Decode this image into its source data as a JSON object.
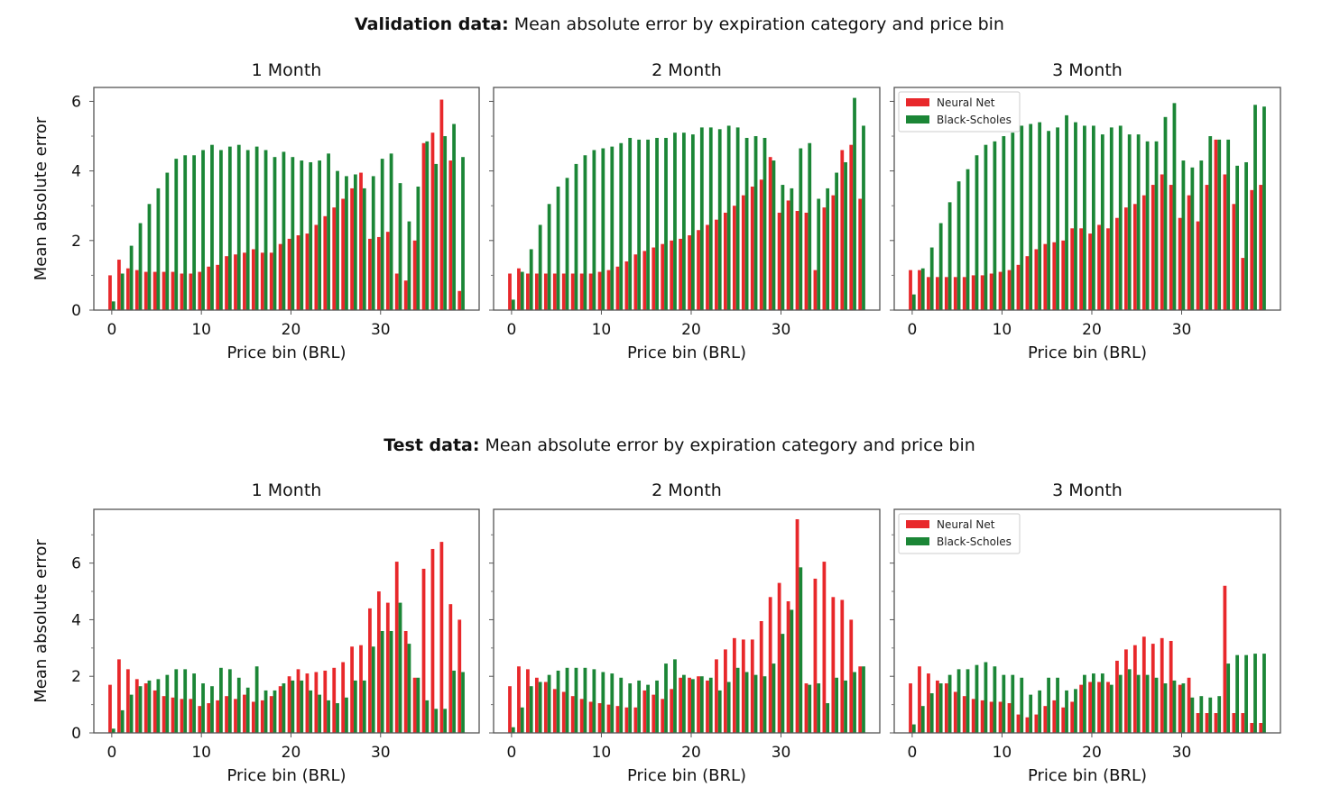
{
  "colors": {
    "neural_net": "#e8282b",
    "black_scholes": "#1b8636"
  },
  "chart_data": [
    {
      "type": "bar",
      "title": "1 Month",
      "suptitle_bold": "Validation data:",
      "suptitle_rest": " Mean absolute error by expiration category and price bin",
      "xlabel": "Price bin (BRL)",
      "ylabel": "Mean absolute error",
      "xlim": [
        -2,
        41
      ],
      "ylim": [
        0,
        6.4
      ],
      "xticks": [
        0,
        10,
        20,
        30
      ],
      "yticks": [
        0,
        2,
        4,
        6
      ],
      "x": [
        0,
        1,
        2,
        3,
        4,
        5,
        6,
        7,
        8,
        9,
        10,
        11,
        12,
        13,
        14,
        15,
        16,
        17,
        18,
        19,
        20,
        21,
        22,
        23,
        24,
        25,
        26,
        27,
        28,
        29,
        30,
        31,
        32,
        33,
        34,
        35,
        36,
        37,
        38,
        39
      ],
      "legend": false,
      "series": [
        {
          "name": "Neural Net",
          "values": [
            1.0,
            1.45,
            1.2,
            1.15,
            1.1,
            1.1,
            1.1,
            1.1,
            1.05,
            1.05,
            1.1,
            1.25,
            1.3,
            1.55,
            1.6,
            1.65,
            1.75,
            1.65,
            1.65,
            1.9,
            2.05,
            2.15,
            2.2,
            2.45,
            2.7,
            2.95,
            3.2,
            3.5,
            3.95,
            2.05,
            2.1,
            2.25,
            1.05,
            0.85,
            2.0,
            4.8,
            5.1,
            6.05,
            4.3,
            0.55
          ]
        },
        {
          "name": "Black-Scholes",
          "values": [
            0.25,
            1.05,
            1.85,
            2.5,
            3.05,
            3.5,
            3.95,
            4.35,
            4.45,
            4.45,
            4.6,
            4.75,
            4.6,
            4.7,
            4.75,
            4.6,
            4.7,
            4.6,
            4.4,
            4.55,
            4.4,
            4.3,
            4.25,
            4.3,
            4.5,
            4.0,
            3.85,
            3.9,
            3.5,
            3.85,
            4.35,
            4.5,
            3.65,
            2.55,
            3.55,
            4.85,
            4.2,
            5.0,
            5.35,
            4.4
          ]
        }
      ]
    },
    {
      "type": "bar",
      "title": "2 Month",
      "xlabel": "Price bin (BRL)",
      "ylabel": "",
      "xlim": [
        -2,
        41
      ],
      "ylim": [
        0,
        6.4
      ],
      "xticks": [
        0,
        10,
        20,
        30
      ],
      "yticks": [
        0,
        2,
        4,
        6
      ],
      "x": [
        0,
        1,
        2,
        3,
        4,
        5,
        6,
        7,
        8,
        9,
        10,
        11,
        12,
        13,
        14,
        15,
        16,
        17,
        18,
        19,
        20,
        21,
        22,
        23,
        24,
        25,
        26,
        27,
        28,
        29,
        30,
        31,
        32,
        33,
        34,
        35,
        36,
        37,
        38,
        39
      ],
      "legend": false,
      "series": [
        {
          "name": "Neural Net",
          "values": [
            1.05,
            1.2,
            1.05,
            1.05,
            1.05,
            1.05,
            1.05,
            1.05,
            1.05,
            1.05,
            1.1,
            1.15,
            1.25,
            1.4,
            1.6,
            1.7,
            1.8,
            1.9,
            2.0,
            2.05,
            2.15,
            2.3,
            2.45,
            2.6,
            2.8,
            3.0,
            3.3,
            3.55,
            3.75,
            4.4,
            2.8,
            3.15,
            2.85,
            2.8,
            1.15,
            2.95,
            3.3,
            4.6,
            4.75,
            3.2
          ]
        },
        {
          "name": "Black-Scholes",
          "values": [
            0.3,
            1.1,
            1.75,
            2.45,
            3.05,
            3.55,
            3.8,
            4.2,
            4.45,
            4.6,
            4.65,
            4.7,
            4.8,
            4.95,
            4.9,
            4.9,
            4.95,
            4.95,
            5.1,
            5.1,
            5.05,
            5.25,
            5.25,
            5.2,
            5.3,
            5.25,
            4.95,
            5.0,
            4.95,
            4.3,
            3.6,
            3.5,
            4.65,
            4.8,
            3.2,
            3.5,
            3.95,
            4.25,
            6.1,
            5.3
          ]
        }
      ]
    },
    {
      "type": "bar",
      "title": "3 Month",
      "xlabel": "Price bin (BRL)",
      "ylabel": "",
      "xlim": [
        -2,
        41
      ],
      "ylim": [
        0,
        6.4
      ],
      "xticks": [
        0,
        10,
        20,
        30
      ],
      "yticks": [
        0,
        2,
        4,
        6
      ],
      "x": [
        0,
        1,
        2,
        3,
        4,
        5,
        6,
        7,
        8,
        9,
        10,
        11,
        12,
        13,
        14,
        15,
        16,
        17,
        18,
        19,
        20,
        21,
        22,
        23,
        24,
        25,
        26,
        27,
        28,
        29,
        30,
        31,
        32,
        33,
        34,
        35,
        36,
        37,
        38,
        39
      ],
      "legend": true,
      "legend_loc": "upper left",
      "series": [
        {
          "name": "Neural Net",
          "values": [
            1.15,
            1.15,
            0.95,
            0.95,
            0.95,
            0.95,
            0.95,
            1.0,
            1.0,
            1.05,
            1.1,
            1.15,
            1.3,
            1.55,
            1.75,
            1.9,
            1.95,
            2.0,
            2.35,
            2.35,
            2.2,
            2.45,
            2.35,
            2.65,
            2.95,
            3.05,
            3.3,
            3.6,
            3.9,
            3.6,
            2.65,
            3.3,
            2.55,
            3.6,
            4.9,
            3.9,
            3.05,
            1.5,
            3.45,
            3.6
          ]
        },
        {
          "name": "Black-Scholes",
          "values": [
            0.45,
            1.2,
            1.8,
            2.5,
            3.1,
            3.7,
            4.05,
            4.45,
            4.75,
            4.85,
            5.0,
            5.1,
            5.3,
            5.35,
            5.4,
            5.15,
            5.25,
            5.6,
            5.4,
            5.3,
            5.3,
            5.05,
            5.25,
            5.3,
            5.05,
            5.05,
            4.85,
            4.85,
            5.55,
            5.95,
            4.3,
            4.1,
            4.3,
            5.0,
            4.9,
            4.9,
            4.15,
            4.25,
            5.9,
            5.85
          ]
        }
      ]
    },
    {
      "type": "bar",
      "title": "1 Month",
      "suptitle_bold": "Test data:",
      "suptitle_rest": " Mean absolute error by expiration category and price bin",
      "xlabel": "Price bin (BRL)",
      "ylabel": "Mean absolute error",
      "xlim": [
        -2,
        41
      ],
      "ylim": [
        0,
        7.9
      ],
      "xticks": [
        0,
        10,
        20,
        30
      ],
      "yticks": [
        0,
        2,
        4,
        6
      ],
      "x": [
        0,
        1,
        2,
        3,
        4,
        5,
        6,
        7,
        8,
        9,
        10,
        11,
        12,
        13,
        14,
        15,
        16,
        17,
        18,
        19,
        20,
        21,
        22,
        23,
        24,
        25,
        26,
        27,
        28,
        29,
        30,
        31,
        32,
        33,
        34,
        35,
        36,
        37,
        38,
        39
      ],
      "legend": false,
      "series": [
        {
          "name": "Neural Net",
          "values": [
            1.7,
            2.6,
            2.25,
            1.9,
            1.75,
            1.5,
            1.3,
            1.25,
            1.2,
            1.2,
            0.95,
            1.05,
            1.15,
            1.3,
            1.2,
            1.35,
            1.1,
            1.15,
            1.3,
            1.65,
            2.0,
            2.25,
            2.1,
            2.15,
            2.2,
            2.3,
            2.5,
            3.05,
            3.1,
            4.4,
            5.0,
            4.6,
            6.05,
            3.6,
            1.95,
            5.8,
            6.5,
            6.75,
            4.55,
            4.0
          ]
        },
        {
          "name": "Black-Scholes",
          "values": [
            0.15,
            0.8,
            1.35,
            1.65,
            1.85,
            1.9,
            2.05,
            2.25,
            2.25,
            2.1,
            1.75,
            1.65,
            2.3,
            2.25,
            1.95,
            1.6,
            2.35,
            1.5,
            1.5,
            1.75,
            1.85,
            1.85,
            1.5,
            1.35,
            1.15,
            1.05,
            1.25,
            1.85,
            1.85,
            3.05,
            3.6,
            3.6,
            4.6,
            3.15,
            1.95,
            1.15,
            0.85,
            0.85,
            2.2,
            2.15
          ]
        }
      ]
    },
    {
      "type": "bar",
      "title": "2 Month",
      "xlabel": "Price bin (BRL)",
      "ylabel": "",
      "xlim": [
        -2,
        41
      ],
      "ylim": [
        0,
        7.9
      ],
      "xticks": [
        0,
        10,
        20,
        30
      ],
      "yticks": [
        0,
        2,
        4,
        6
      ],
      "x": [
        0,
        1,
        2,
        3,
        4,
        5,
        6,
        7,
        8,
        9,
        10,
        11,
        12,
        13,
        14,
        15,
        16,
        17,
        18,
        19,
        20,
        21,
        22,
        23,
        24,
        25,
        26,
        27,
        28,
        29,
        30,
        31,
        32,
        33,
        34,
        35,
        36,
        37,
        38,
        39
      ],
      "legend": false,
      "series": [
        {
          "name": "Neural Net",
          "values": [
            1.65,
            2.35,
            2.25,
            1.95,
            1.8,
            1.55,
            1.45,
            1.3,
            1.2,
            1.1,
            1.05,
            1.0,
            0.95,
            0.9,
            0.9,
            1.5,
            1.35,
            1.2,
            1.55,
            1.95,
            1.95,
            2.0,
            1.85,
            2.6,
            2.95,
            3.35,
            3.3,
            3.3,
            3.95,
            4.8,
            5.3,
            4.65,
            7.55,
            1.75,
            5.45,
            6.05,
            4.8,
            4.7,
            4.0,
            2.35
          ]
        },
        {
          "name": "Black-Scholes",
          "values": [
            0.2,
            0.9,
            1.65,
            1.8,
            2.05,
            2.2,
            2.3,
            2.3,
            2.3,
            2.25,
            2.15,
            2.1,
            1.95,
            1.75,
            1.85,
            1.7,
            1.85,
            2.45,
            2.6,
            2.05,
            1.9,
            2.0,
            1.95,
            1.5,
            1.8,
            2.3,
            2.15,
            2.05,
            2.0,
            2.45,
            3.5,
            4.35,
            5.85,
            1.7,
            1.75,
            1.05,
            1.95,
            1.85,
            2.15,
            2.35
          ]
        }
      ]
    },
    {
      "type": "bar",
      "title": "3 Month",
      "xlabel": "Price bin (BRL)",
      "ylabel": "",
      "xlim": [
        -2,
        41
      ],
      "ylim": [
        0,
        7.9
      ],
      "xticks": [
        0,
        10,
        20,
        30
      ],
      "yticks": [
        0,
        2,
        4,
        6
      ],
      "x": [
        0,
        1,
        2,
        3,
        4,
        5,
        6,
        7,
        8,
        9,
        10,
        11,
        12,
        13,
        14,
        15,
        16,
        17,
        18,
        19,
        20,
        21,
        22,
        23,
        24,
        25,
        26,
        27,
        28,
        29,
        30,
        31,
        32,
        33,
        34,
        35,
        36,
        37,
        38,
        39
      ],
      "legend": true,
      "legend_loc": "upper left",
      "series": [
        {
          "name": "Neural Net",
          "values": [
            1.75,
            2.35,
            2.1,
            1.85,
            1.75,
            1.45,
            1.3,
            1.2,
            1.15,
            1.1,
            1.1,
            1.05,
            0.65,
            0.55,
            0.65,
            0.95,
            1.15,
            0.9,
            1.1,
            1.7,
            1.8,
            1.8,
            1.8,
            2.55,
            2.95,
            3.1,
            3.4,
            3.15,
            3.35,
            3.25,
            1.7,
            1.95,
            0.7,
            0.7,
            0.7,
            5.2,
            0.7,
            0.7,
            0.35,
            0.35
          ]
        },
        {
          "name": "Black-Scholes",
          "values": [
            0.3,
            0.95,
            1.4,
            1.75,
            2.05,
            2.25,
            2.25,
            2.4,
            2.5,
            2.35,
            2.05,
            2.05,
            1.95,
            1.35,
            1.5,
            1.95,
            1.95,
            1.5,
            1.55,
            2.05,
            2.1,
            2.1,
            1.7,
            2.05,
            2.25,
            2.05,
            2.05,
            1.95,
            1.75,
            1.85,
            1.75,
            1.25,
            1.3,
            1.25,
            1.3,
            2.45,
            2.75,
            2.75,
            2.8,
            2.8
          ]
        }
      ]
    }
  ]
}
